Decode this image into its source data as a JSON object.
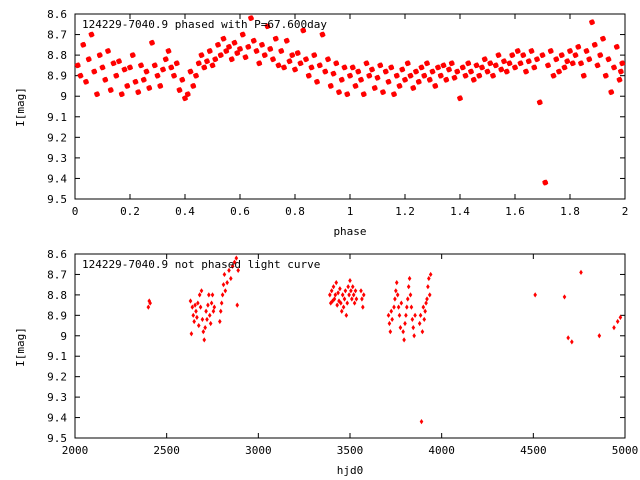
{
  "chart_data": [
    {
      "type": "scatter",
      "title": "124229-7040.9 phased with P=67.600day",
      "xlabel": "phase",
      "ylabel": "I[mag]",
      "xlim": [
        0,
        2
      ],
      "ylim": [
        9.5,
        8.6
      ],
      "y_inverted": true,
      "x_ticks": [
        "0",
        "0.2",
        "0.4",
        "0.6",
        "0.8",
        "1",
        "1.2",
        "1.4",
        "1.6",
        "1.8",
        "2"
      ],
      "y_ticks": [
        "8.6",
        "8.7",
        "8.8",
        "8.9",
        "9",
        "9.1",
        "9.2",
        "9.3",
        "9.4",
        "9.5"
      ],
      "marker_color": "#ff0000",
      "grid": false,
      "points": [
        [
          0.01,
          8.85
        ],
        [
          0.02,
          8.9
        ],
        [
          0.03,
          8.75
        ],
        [
          0.04,
          8.93
        ],
        [
          0.05,
          8.82
        ],
        [
          0.06,
          8.7
        ],
        [
          0.07,
          8.88
        ],
        [
          0.08,
          8.99
        ],
        [
          0.09,
          8.8
        ],
        [
          0.1,
          8.86
        ],
        [
          0.11,
          8.92
        ],
        [
          0.12,
          8.78
        ],
        [
          0.13,
          8.97
        ],
        [
          0.14,
          8.84
        ],
        [
          0.15,
          8.9
        ],
        [
          0.16,
          8.83
        ],
        [
          0.17,
          8.99
        ],
        [
          0.18,
          8.87
        ],
        [
          0.19,
          8.95
        ],
        [
          0.2,
          8.86
        ],
        [
          0.21,
          8.8
        ],
        [
          0.22,
          8.93
        ],
        [
          0.23,
          8.98
        ],
        [
          0.24,
          8.85
        ],
        [
          0.25,
          8.92
        ],
        [
          0.26,
          8.88
        ],
        [
          0.27,
          8.96
        ],
        [
          0.28,
          8.74
        ],
        [
          0.29,
          8.85
        ],
        [
          0.3,
          8.9
        ],
        [
          0.31,
          8.95
        ],
        [
          0.32,
          8.87
        ],
        [
          0.33,
          8.82
        ],
        [
          0.34,
          8.78
        ],
        [
          0.35,
          8.86
        ],
        [
          0.36,
          8.9
        ],
        [
          0.37,
          8.84
        ],
        [
          0.38,
          8.97
        ],
        [
          0.39,
          8.92
        ],
        [
          0.4,
          9.01
        ],
        [
          0.41,
          8.99
        ],
        [
          0.42,
          8.88
        ],
        [
          0.43,
          8.95
        ],
        [
          0.44,
          8.9
        ],
        [
          0.45,
          8.84
        ],
        [
          0.46,
          8.8
        ],
        [
          0.47,
          8.86
        ],
        [
          0.48,
          8.83
        ],
        [
          0.49,
          8.78
        ],
        [
          0.5,
          8.85
        ],
        [
          0.51,
          8.82
        ],
        [
          0.52,
          8.75
        ],
        [
          0.53,
          8.8
        ],
        [
          0.54,
          8.72
        ],
        [
          0.55,
          8.78
        ],
        [
          0.56,
          8.76
        ],
        [
          0.57,
          8.82
        ],
        [
          0.58,
          8.74
        ],
        [
          0.59,
          8.79
        ],
        [
          0.6,
          8.77
        ],
        [
          0.61,
          8.7
        ],
        [
          0.62,
          8.81
        ],
        [
          0.63,
          8.76
        ],
        [
          0.64,
          8.62
        ],
        [
          0.65,
          8.73
        ],
        [
          0.66,
          8.78
        ],
        [
          0.67,
          8.84
        ],
        [
          0.68,
          8.75
        ],
        [
          0.69,
          8.8
        ],
        [
          0.7,
          8.66
        ],
        [
          0.71,
          8.77
        ],
        [
          0.72,
          8.82
        ],
        [
          0.73,
          8.72
        ],
        [
          0.74,
          8.85
        ],
        [
          0.75,
          8.78
        ],
        [
          0.76,
          8.86
        ],
        [
          0.77,
          8.73
        ],
        [
          0.78,
          8.83
        ],
        [
          0.79,
          8.8
        ],
        [
          0.8,
          8.87
        ],
        [
          0.81,
          8.79
        ],
        [
          0.82,
          8.84
        ],
        [
          0.83,
          8.68
        ],
        [
          0.84,
          8.82
        ],
        [
          0.85,
          8.9
        ],
        [
          0.86,
          8.86
        ],
        [
          0.87,
          8.8
        ],
        [
          0.88,
          8.93
        ],
        [
          0.89,
          8.85
        ],
        [
          0.9,
          8.7
        ],
        [
          0.91,
          8.88
        ],
        [
          0.92,
          8.82
        ],
        [
          0.93,
          8.95
        ],
        [
          0.94,
          8.89
        ],
        [
          0.95,
          8.84
        ],
        [
          0.96,
          8.98
        ],
        [
          0.97,
          8.92
        ],
        [
          0.98,
          8.86
        ],
        [
          0.99,
          8.99
        ],
        [
          1.0,
          8.9
        ],
        [
          1.01,
          8.86
        ],
        [
          1.02,
          8.95
        ],
        [
          1.03,
          8.88
        ],
        [
          1.04,
          8.92
        ],
        [
          1.05,
          8.99
        ],
        [
          1.06,
          8.84
        ],
        [
          1.07,
          8.9
        ],
        [
          1.08,
          8.87
        ],
        [
          1.09,
          8.96
        ],
        [
          1.1,
          8.91
        ],
        [
          1.11,
          8.85
        ],
        [
          1.12,
          8.98
        ],
        [
          1.13,
          8.88
        ],
        [
          1.14,
          8.93
        ],
        [
          1.15,
          8.86
        ],
        [
          1.16,
          8.99
        ],
        [
          1.17,
          8.9
        ],
        [
          1.18,
          8.95
        ],
        [
          1.19,
          8.87
        ],
        [
          1.2,
          8.92
        ],
        [
          1.21,
          8.84
        ],
        [
          1.22,
          8.9
        ],
        [
          1.23,
          8.96
        ],
        [
          1.24,
          8.88
        ],
        [
          1.25,
          8.93
        ],
        [
          1.26,
          8.86
        ],
        [
          1.27,
          8.9
        ],
        [
          1.28,
          8.84
        ],
        [
          1.29,
          8.92
        ],
        [
          1.3,
          8.88
        ],
        [
          1.31,
          8.95
        ],
        [
          1.32,
          8.86
        ],
        [
          1.33,
          8.9
        ],
        [
          1.34,
          8.85
        ],
        [
          1.35,
          8.92
        ],
        [
          1.36,
          8.87
        ],
        [
          1.37,
          8.84
        ],
        [
          1.38,
          8.91
        ],
        [
          1.39,
          8.88
        ],
        [
          1.4,
          9.01
        ],
        [
          1.41,
          8.86
        ],
        [
          1.42,
          8.9
        ],
        [
          1.43,
          8.84
        ],
        [
          1.44,
          8.88
        ],
        [
          1.45,
          8.92
        ],
        [
          1.46,
          8.85
        ],
        [
          1.47,
          8.9
        ],
        [
          1.48,
          8.86
        ],
        [
          1.49,
          8.82
        ],
        [
          1.5,
          8.88
        ],
        [
          1.51,
          8.84
        ],
        [
          1.52,
          8.9
        ],
        [
          1.53,
          8.85
        ],
        [
          1.54,
          8.8
        ],
        [
          1.55,
          8.87
        ],
        [
          1.56,
          8.83
        ],
        [
          1.57,
          8.88
        ],
        [
          1.58,
          8.84
        ],
        [
          1.59,
          8.8
        ],
        [
          1.6,
          8.86
        ],
        [
          1.61,
          8.78
        ],
        [
          1.62,
          8.84
        ],
        [
          1.63,
          8.8
        ],
        [
          1.64,
          8.88
        ],
        [
          1.65,
          8.83
        ],
        [
          1.66,
          8.78
        ],
        [
          1.67,
          8.86
        ],
        [
          1.68,
          8.82
        ],
        [
          1.69,
          9.03
        ],
        [
          1.7,
          8.8
        ],
        [
          1.71,
          9.42
        ],
        [
          1.72,
          8.85
        ],
        [
          1.73,
          8.78
        ],
        [
          1.74,
          8.9
        ],
        [
          1.75,
          8.82
        ],
        [
          1.76,
          8.88
        ],
        [
          1.77,
          8.8
        ],
        [
          1.78,
          8.86
        ],
        [
          1.79,
          8.83
        ],
        [
          1.8,
          8.78
        ],
        [
          1.81,
          8.84
        ],
        [
          1.82,
          8.8
        ],
        [
          1.83,
          8.76
        ],
        [
          1.84,
          8.84
        ],
        [
          1.85,
          8.9
        ],
        [
          1.86,
          8.78
        ],
        [
          1.87,
          8.82
        ],
        [
          1.88,
          8.64
        ],
        [
          1.89,
          8.75
        ],
        [
          1.9,
          8.85
        ],
        [
          1.91,
          8.8
        ],
        [
          1.92,
          8.72
        ],
        [
          1.93,
          8.9
        ],
        [
          1.94,
          8.82
        ],
        [
          1.95,
          8.98
        ],
        [
          1.96,
          8.86
        ],
        [
          1.97,
          8.76
        ],
        [
          1.98,
          8.92
        ],
        [
          1.99,
          8.84
        ],
        [
          1.985,
          8.88
        ]
      ]
    },
    {
      "type": "scatter",
      "title": "124229-7040.9 not phased light curve",
      "xlabel": "hjd0",
      "ylabel": "I[mag]",
      "xlim": [
        2000,
        5000
      ],
      "ylim": [
        9.5,
        8.6
      ],
      "y_inverted": true,
      "x_ticks": [
        "2000",
        "2500",
        "3000",
        "3500",
        "4000",
        "4500",
        "5000"
      ],
      "y_ticks": [
        "8.6",
        "8.7",
        "8.8",
        "8.9",
        "9",
        "9.1",
        "9.2",
        "9.3",
        "9.4",
        "9.5"
      ],
      "marker_color": "#ff0000",
      "grid": false,
      "points": [
        [
          2400,
          8.86
        ],
        [
          2405,
          8.83
        ],
        [
          2410,
          8.84
        ],
        [
          2630,
          8.83
        ],
        [
          2635,
          8.99
        ],
        [
          2640,
          8.86
        ],
        [
          2645,
          8.9
        ],
        [
          2650,
          8.93
        ],
        [
          2655,
          8.85
        ],
        [
          2660,
          8.88
        ],
        [
          2665,
          8.91
        ],
        [
          2670,
          8.84
        ],
        [
          2675,
          8.95
        ],
        [
          2680,
          8.8
        ],
        [
          2685,
          8.86
        ],
        [
          2690,
          8.78
        ],
        [
          2695,
          8.92
        ],
        [
          2700,
          8.98
        ],
        [
          2705,
          9.02
        ],
        [
          2710,
          8.96
        ],
        [
          2715,
          8.88
        ],
        [
          2720,
          8.92
        ],
        [
          2725,
          8.85
        ],
        [
          2730,
          8.8
        ],
        [
          2735,
          8.9
        ],
        [
          2740,
          8.94
        ],
        [
          2745,
          8.84
        ],
        [
          2750,
          8.8
        ],
        [
          2755,
          8.88
        ],
        [
          2760,
          8.86
        ],
        [
          2790,
          8.93
        ],
        [
          2795,
          8.88
        ],
        [
          2800,
          8.84
        ],
        [
          2805,
          8.8
        ],
        [
          2810,
          8.75
        ],
        [
          2815,
          8.7
        ],
        [
          2820,
          8.78
        ],
        [
          2830,
          8.74
        ],
        [
          2840,
          8.68
        ],
        [
          2850,
          8.72
        ],
        [
          2860,
          8.66
        ],
        [
          2870,
          8.64
        ],
        [
          2880,
          8.62
        ],
        [
          2885,
          8.85
        ],
        [
          2890,
          8.68
        ],
        [
          3390,
          8.8
        ],
        [
          3395,
          8.84
        ],
        [
          3400,
          8.78
        ],
        [
          3405,
          8.83
        ],
        [
          3410,
          8.76
        ],
        [
          3415,
          8.82
        ],
        [
          3420,
          8.8
        ],
        [
          3425,
          8.74
        ],
        [
          3430,
          8.85
        ],
        [
          3435,
          8.79
        ],
        [
          3440,
          8.83
        ],
        [
          3445,
          8.77
        ],
        [
          3450,
          8.84
        ],
        [
          3455,
          8.88
        ],
        [
          3460,
          8.8
        ],
        [
          3465,
          8.86
        ],
        [
          3470,
          8.82
        ],
        [
          3475,
          8.78
        ],
        [
          3480,
          8.9
        ],
        [
          3485,
          8.84
        ],
        [
          3490,
          8.76
        ],
        [
          3495,
          8.8
        ],
        [
          3500,
          8.73
        ],
        [
          3505,
          8.78
        ],
        [
          3510,
          8.82
        ],
        [
          3515,
          8.76
        ],
        [
          3520,
          8.8
        ],
        [
          3525,
          8.84
        ],
        [
          3530,
          8.78
        ],
        [
          3535,
          8.82
        ],
        [
          3560,
          8.78
        ],
        [
          3565,
          8.82
        ],
        [
          3570,
          8.86
        ],
        [
          3575,
          8.8
        ],
        [
          3710,
          8.9
        ],
        [
          3715,
          8.94
        ],
        [
          3720,
          8.98
        ],
        [
          3725,
          8.88
        ],
        [
          3730,
          8.92
        ],
        [
          3740,
          8.86
        ],
        [
          3745,
          8.82
        ],
        [
          3750,
          8.78
        ],
        [
          3755,
          8.74
        ],
        [
          3760,
          8.8
        ],
        [
          3765,
          8.86
        ],
        [
          3770,
          8.9
        ],
        [
          3775,
          8.96
        ],
        [
          3780,
          8.84
        ],
        [
          3790,
          8.98
        ],
        [
          3795,
          9.02
        ],
        [
          3800,
          8.94
        ],
        [
          3805,
          8.9
        ],
        [
          3810,
          8.86
        ],
        [
          3815,
          8.82
        ],
        [
          3820,
          8.76
        ],
        [
          3825,
          8.72
        ],
        [
          3830,
          8.8
        ],
        [
          3835,
          8.86
        ],
        [
          3840,
          8.92
        ],
        [
          3845,
          8.96
        ],
        [
          3850,
          9.0
        ],
        [
          3855,
          8.9
        ],
        [
          3880,
          8.94
        ],
        [
          3885,
          8.9
        ],
        [
          3890,
          9.42
        ],
        [
          3895,
          8.98
        ],
        [
          3900,
          8.86
        ],
        [
          3905,
          8.92
        ],
        [
          3910,
          8.88
        ],
        [
          3915,
          8.84
        ],
        [
          3920,
          8.82
        ],
        [
          3925,
          8.76
        ],
        [
          3930,
          8.72
        ],
        [
          3935,
          8.8
        ],
        [
          3940,
          8.7
        ],
        [
          4510,
          8.8
        ],
        [
          4670,
          8.81
        ],
        [
          4690,
          9.01
        ],
        [
          4710,
          9.03
        ],
        [
          4760,
          8.69
        ],
        [
          4860,
          9.0
        ],
        [
          4940,
          8.96
        ],
        [
          4960,
          8.93
        ],
        [
          4975,
          8.91
        ]
      ]
    }
  ]
}
